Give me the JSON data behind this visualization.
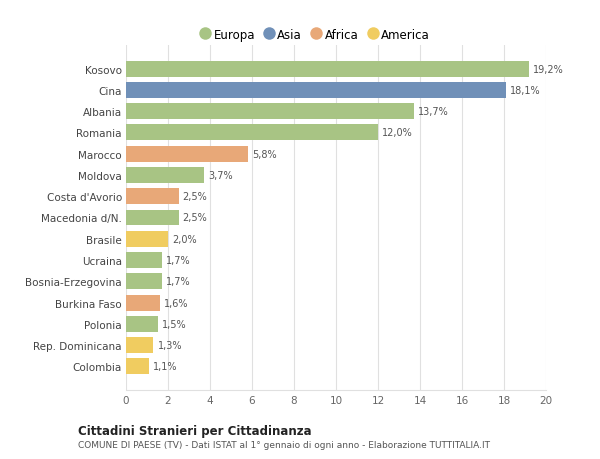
{
  "categories": [
    "Colombia",
    "Rep. Dominicana",
    "Polonia",
    "Burkina Faso",
    "Bosnia-Erzegovina",
    "Ucraina",
    "Brasile",
    "Macedonia d/N.",
    "Costa d'Avorio",
    "Moldova",
    "Marocco",
    "Romania",
    "Albania",
    "Cina",
    "Kosovo"
  ],
  "values": [
    1.1,
    1.3,
    1.5,
    1.6,
    1.7,
    1.7,
    2.0,
    2.5,
    2.5,
    3.7,
    5.8,
    12.0,
    13.7,
    18.1,
    19.2
  ],
  "labels": [
    "1,1%",
    "1,3%",
    "1,5%",
    "1,6%",
    "1,7%",
    "1,7%",
    "2,0%",
    "2,5%",
    "2,5%",
    "3,7%",
    "5,8%",
    "12,0%",
    "13,7%",
    "18,1%",
    "19,2%"
  ],
  "continents": [
    "America",
    "America",
    "Europa",
    "Africa",
    "Europa",
    "Europa",
    "America",
    "Europa",
    "Africa",
    "Europa",
    "Africa",
    "Europa",
    "Europa",
    "Asia",
    "Europa"
  ],
  "colors": {
    "Europa": "#a8c484",
    "Asia": "#7090b8",
    "Africa": "#e8a878",
    "America": "#f0cc60"
  },
  "legend_order": [
    "Europa",
    "Asia",
    "Africa",
    "America"
  ],
  "title1": "Cittadini Stranieri per Cittadinanza",
  "title2": "COMUNE DI PAESE (TV) - Dati ISTAT al 1° gennaio di ogni anno - Elaborazione TUTTITALIA.IT",
  "xlim": [
    0,
    20
  ],
  "xticks": [
    0,
    2,
    4,
    6,
    8,
    10,
    12,
    14,
    16,
    18,
    20
  ],
  "background_color": "#ffffff",
  "grid_color": "#e0e0e0"
}
